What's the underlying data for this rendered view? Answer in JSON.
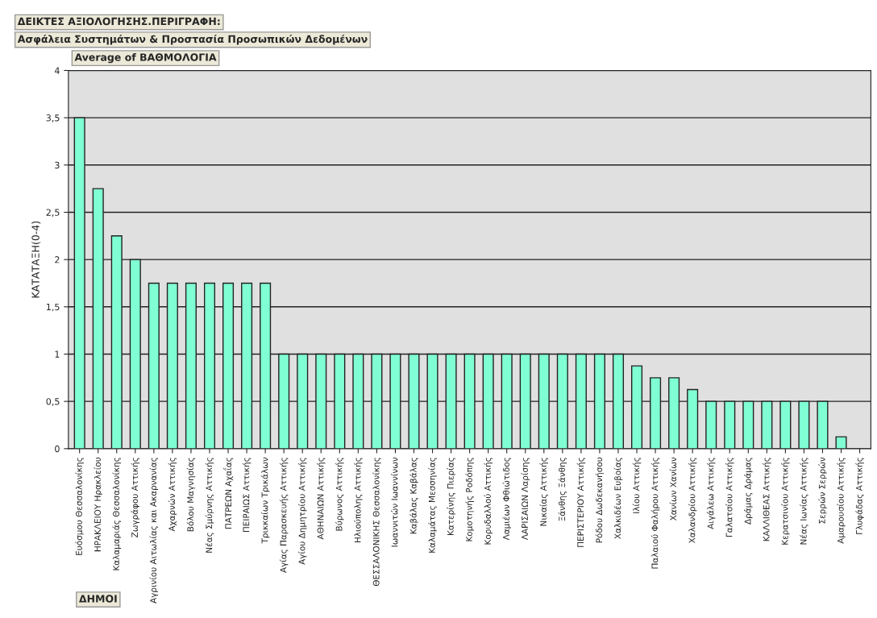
{
  "chart_data": {
    "type": "bar",
    "title": "ΔΕΙΚΤΕΣ ΑΞΙΟΛΟΓΗΣΗΣ.ΠΕΡΙΓΡΑΦΗ:",
    "subtitle": "Ασφάλεια Συστημάτων & Προστασία Προσωπικών Δεδομένων",
    "xlabel": "ΔΗΜΟΙ",
    "ylabel": "ΚΑΤΑΤΑΞΗ(0-4)",
    "annotations": [
      "Average of ΒΑΘΜΟΛΟΓΙΑ"
    ],
    "categories": [
      "Ευόσμου Θεσσαλονίκης",
      "ΗΡΑΚΛΕΙΟΥ Ηρακλείου",
      "Καλαμαριάς Θεσσαλονίκης",
      "Ζωγράφου Αττικής",
      "Αγρινίου Αιτωλίας και Ακαρνανίας",
      "Αχαρνών Αττικής",
      "Βόλου Μαγνησίας",
      "Νέας Σμύρνης Αττικής",
      "ΠΑΤΡΕΩΝ Αχαΐας",
      "ΠΕΙΡΑΙΩΣ Αττικής",
      "Τρικκαίων Τρικάλων",
      "Αγίας Παρασκευής Αττικής",
      "Αγίου Δημητρίου Αττικής",
      "ΑΘΗΝΑΙΩΝ Αττικής",
      "Βύρωνος Αττικής",
      "Ηλιούπολης Αττικής",
      "ΘΕΣΣΑΛΟΝΙΚΗΣ Θεσσαλονίκης",
      "Ιωαννιτών Ιωαννίνων",
      "Καβάλας Καβάλας",
      "Καλαμάτας Μεσσηνίας",
      "Κατερίνης Πιερίας",
      "Κομοτηνής Ροδόπης",
      "Κορυδαλλού Αττικής",
      "Λαμιέων Φθιώτιδος",
      "ΛΑΡΙΣΑΙΩΝ Λαρίσης",
      "Νικαίας Αττικής",
      "Ξάνθης Ξάνθης",
      "ΠΕΡΙΣΤΕΡΙΟΥ Αττικής",
      "Ρόδου Δωδεκανήσου",
      "Χαλκιδέων Ευβοίας",
      "Ιλίου Αττικής",
      "Παλαιού Φαλήρου Αττικής",
      "Χανίων Χανίων",
      "Χαλανδρίου Αττικής",
      "Αιγάλεω Αττικής",
      "Γαλατσίου Αττικής",
      "Δράμας Δράμας",
      "ΚΑΛΛΙΘΕΑΣ Αττικής",
      "Κερατσινίου Αττικής",
      "Νέας Ιωνίας Αττικής",
      "Σερρών Σερρών",
      "Αμαρουσίου Αττικής",
      "Γλυφάδας Αττικής"
    ],
    "values": [
      3.5,
      2.75,
      2.25,
      2,
      1.75,
      1.75,
      1.75,
      1.75,
      1.75,
      1.75,
      1.75,
      1,
      1,
      1,
      1,
      1,
      1,
      1,
      1,
      1,
      1,
      1,
      1,
      1,
      1,
      1,
      1,
      1,
      1,
      1,
      0.875,
      0.75,
      0.75,
      0.625,
      0.5,
      0.5,
      0.5,
      0.5,
      0.5,
      0.5,
      0.5,
      0.125,
      null
    ],
    "color": "#80ffd4",
    "ylim": [
      0,
      4
    ],
    "yticks": [
      0,
      {
        "value": 0.5,
        "label": "0,5"
      },
      1,
      {
        "value": 1.5,
        "label": "1,5"
      },
      2,
      {
        "value": 2.5,
        "label": "2,5"
      },
      3,
      {
        "value": 3.5,
        "label": "3,5"
      },
      4
    ],
    "grid": "y",
    "legend": false
  }
}
